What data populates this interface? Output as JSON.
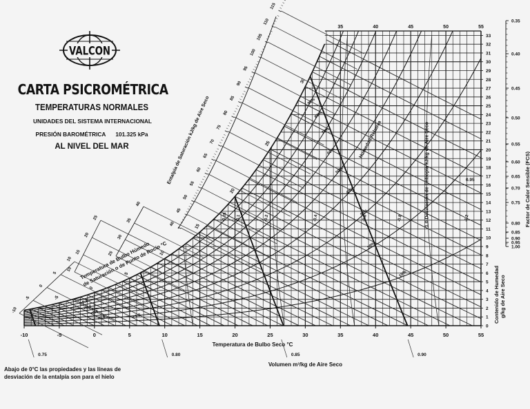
{
  "header": {
    "logo_text": "VALCON",
    "title": "CARTA PSICROMÉTRICA",
    "subtitle": "TEMPERATURAS NORMALES",
    "units": "UNIDADES DEL SISTEMA INTERNACIONAL",
    "pressure_label": "PRESIÓN BAROMÉTRICA",
    "pressure_value": "101.325 kPa",
    "altitude": "AL NIVEL DEL MAR"
  },
  "footnote": {
    "line1": "Abajo de 0°C las propiedades y las líneas de",
    "line2": "desviación de la entalpía son para el hielo"
  },
  "chart_data": {
    "type": "line",
    "title": "CARTA PSICROMÉTRICA",
    "xlabel": "Temperatura de Bulbo Seco °C",
    "ylabel": "Contenido de Humedad g/kg de Aire Seco",
    "xlim": [
      -10,
      55
    ],
    "ylim": [
      0,
      33
    ],
    "x_ticks": [
      -10,
      -5,
      0,
      5,
      10,
      15,
      20,
      25,
      30,
      35,
      40,
      45,
      50,
      55
    ],
    "y_ticks": [
      0,
      1,
      2,
      3,
      4,
      5,
      6,
      7,
      8,
      9,
      10,
      11,
      12,
      13,
      14,
      15,
      16,
      17,
      18,
      19,
      20,
      21,
      22,
      23,
      24,
      25,
      26,
      27,
      28,
      29,
      30,
      31,
      32,
      33
    ],
    "top_ticks": [
      35,
      40,
      45,
      50,
      55
    ],
    "saturation_curve": {
      "name": "Temperatura de Bulbo Húmedo de Saturación o de Punto de Rocío °C",
      "x": [
        -10,
        -5,
        0,
        5,
        10,
        15,
        20,
        25,
        30,
        32,
        33
      ],
      "y": [
        1.6,
        2.5,
        3.8,
        5.4,
        7.6,
        10.7,
        14.7,
        20.0,
        27.3,
        30.7,
        32.7
      ],
      "labels": [
        -10,
        -5,
        0,
        5,
        10,
        15,
        20,
        25,
        30
      ]
    },
    "relative_humidity": {
      "name": "Humedad Relativa",
      "levels": [
        "10%",
        "20%",
        "30%",
        "40%",
        "50%",
        "60%",
        "70%",
        "80%",
        "90%"
      ]
    },
    "enthalpy_scale": {
      "name": "Entalpía de Saturación kJ/kg de Aire Seco",
      "ticks": [
        40,
        45,
        50,
        55,
        60,
        65,
        70,
        75,
        80,
        85,
        90,
        95,
        100,
        105,
        110,
        115
      ]
    },
    "wet_bulb_scale_left": {
      "ticks": [
        -10,
        -5,
        0,
        5,
        10,
        15,
        20,
        25,
        30,
        35,
        40
      ]
    },
    "enthalpy_deviation": {
      "name": "Desviación de Entropía kJ/kg de Aire Seco",
      "labels": [
        "+0.2",
        "+0.4",
        "+0.6",
        "+0.8",
        "+1.0",
        "-0.05",
        "-0.1",
        "-0.2",
        "-0.4",
        "-0.6",
        "-0.8",
        "-1.0",
        "-1.2"
      ]
    },
    "specific_volume": {
      "name": "Volumen m³/kg de Aire Seco",
      "ticks": [
        "0.75",
        "0.80",
        "0.85",
        "0.90"
      ]
    },
    "sensible_heat_factor": {
      "name": "Factor de Calor Sensible (FCS)",
      "ticks": [
        "0.35",
        "0.40",
        "0.45",
        "0.50",
        "0.55",
        "0.60",
        "0.65",
        "0.70",
        "0.75",
        "0.80",
        "0.85",
        "0.90",
        "0.95",
        "1.00"
      ],
      "annotation": "0.95"
    }
  }
}
